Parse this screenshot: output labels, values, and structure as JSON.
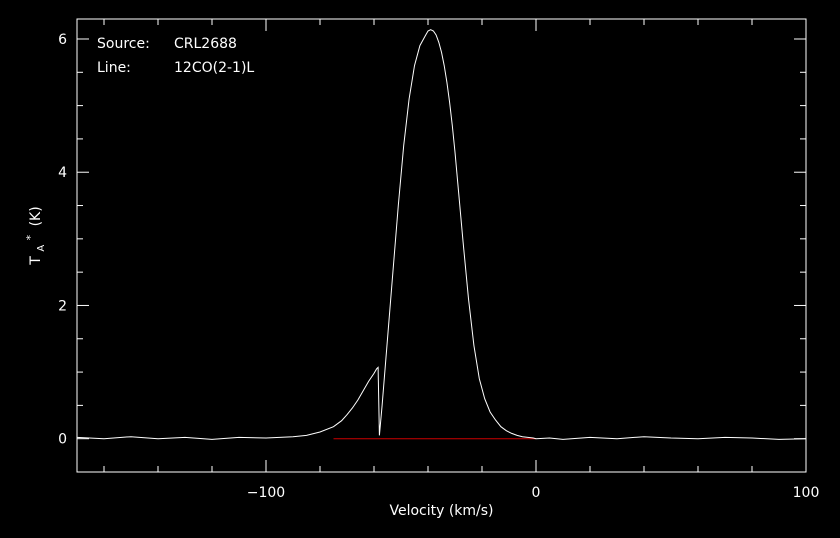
{
  "chart_data": {
    "type": "line",
    "title": "",
    "xlabel": "Velocity (km/s)",
    "ylabel": "T",
    "ylabel_sub": "A",
    "ylabel_sup": "*",
    "ylabel_unit": "(K)",
    "xlim": [
      -170,
      100
    ],
    "ylim": [
      -0.5,
      6.3
    ],
    "xticks": [
      -100,
      0,
      100
    ],
    "xtick_labels": [
      "−100",
      "0",
      "100"
    ],
    "yticks": [
      0,
      2,
      4,
      6
    ],
    "ytick_labels": [
      "0",
      "2",
      "4",
      "6"
    ],
    "grid": false,
    "background": "#000000",
    "line_color": "#ffffff",
    "baseline_color": "#cc0000",
    "baseline_y": 0,
    "annotations": {
      "source_label": "Source:",
      "source_value": "CRL2688",
      "line_label": "Line:",
      "line_value": "12CO(2-1)L"
    },
    "series": [
      {
        "x": [
          -170,
          -160,
          -150,
          -140,
          -130,
          -120,
          -110,
          -100,
          -90,
          -85,
          -80,
          -75,
          -72,
          -70,
          -68,
          -66,
          -64,
          -62,
          -60,
          -59,
          -58.5,
          -58,
          -57,
          -55,
          -53,
          -51,
          -49,
          -47,
          -45,
          -43,
          -41,
          -40,
          -39,
          -38,
          -37,
          -36,
          -35,
          -34,
          -33,
          -32,
          -31,
          -30,
          -29,
          -28,
          -27,
          -25,
          -23,
          -21,
          -19,
          -17,
          -15,
          -13,
          -11,
          -9,
          -7,
          -5,
          -3,
          -1,
          0,
          5,
          10,
          20,
          30,
          40,
          50,
          60,
          70,
          80,
          90,
          100
        ],
        "y": [
          0.02,
          0.0,
          0.03,
          0.0,
          0.02,
          -0.01,
          0.02,
          0.01,
          0.03,
          0.05,
          0.1,
          0.18,
          0.27,
          0.36,
          0.46,
          0.58,
          0.72,
          0.86,
          0.98,
          1.05,
          1.07,
          0.05,
          0.5,
          1.5,
          2.5,
          3.5,
          4.4,
          5.1,
          5.6,
          5.9,
          6.05,
          6.12,
          6.14,
          6.12,
          6.06,
          5.95,
          5.8,
          5.6,
          5.35,
          5.05,
          4.7,
          4.3,
          3.85,
          3.4,
          2.95,
          2.1,
          1.4,
          0.9,
          0.6,
          0.4,
          0.28,
          0.18,
          0.12,
          0.08,
          0.05,
          0.03,
          0.02,
          0.01,
          0.0,
          0.01,
          -0.01,
          0.02,
          0.0,
          0.03,
          0.01,
          0.0,
          0.02,
          0.01,
          -0.01,
          0.0
        ]
      }
    ]
  }
}
